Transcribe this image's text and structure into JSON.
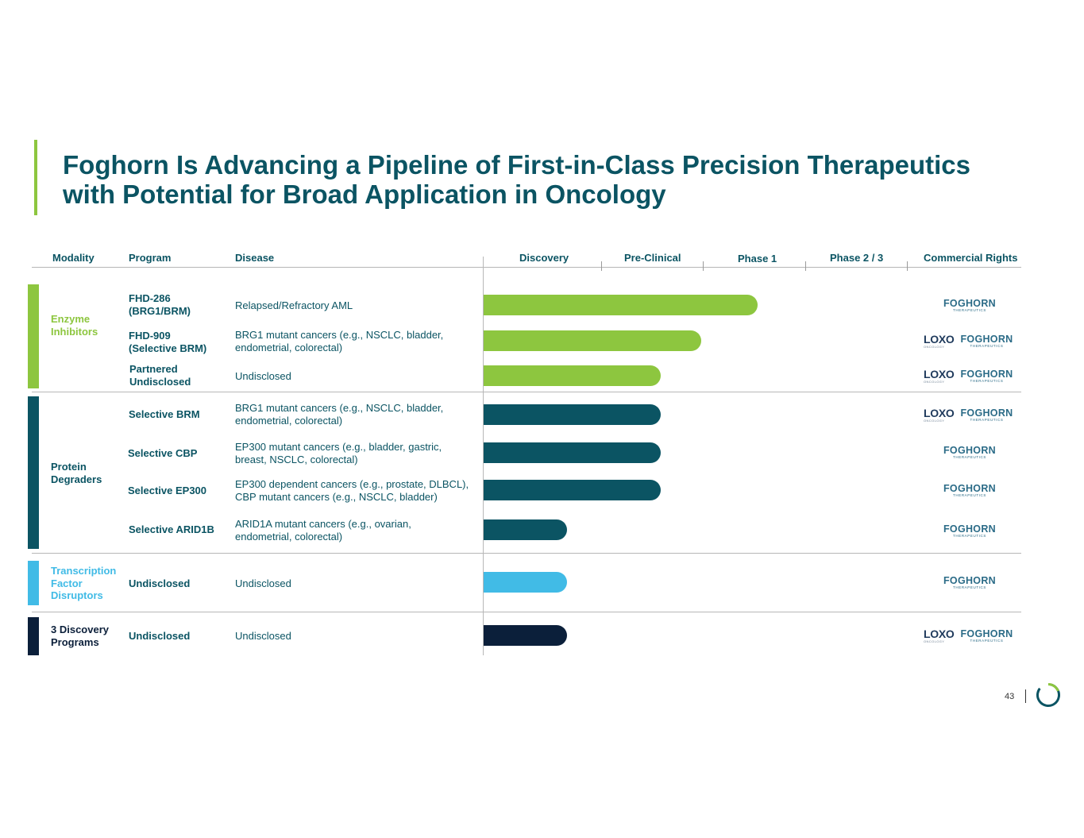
{
  "title": {
    "line1": "Foghorn Is Advancing a Pipeline of First-in-Class Precision Therapeutics",
    "line2": "with Potential for Broad Application in Oncology"
  },
  "headers": {
    "modality": "Modality",
    "program": "Program",
    "disease": "Disease",
    "discovery": "Discovery",
    "preclinical": "Pre-Clinical",
    "phase1": "Phase 1",
    "phase23": "Phase 2 / 3",
    "commercial": "Commercial Rights"
  },
  "colors": {
    "title": "#0b5463",
    "enzyme": "#8dc63f",
    "degrader": "#0b5463",
    "tf": "#41bbe6",
    "discovery": "#0b1f3a"
  },
  "modalities": {
    "enzyme": {
      "line1": "Enzyme",
      "line2": "Inhibitors"
    },
    "degraders": {
      "line1": "Protein",
      "line2": "Degraders"
    },
    "tf": {
      "line1": "Transcription",
      "line2": "Factor",
      "line3": "Disruptors"
    },
    "discovery": {
      "line1": "3 Discovery",
      "line2": "Programs"
    }
  },
  "programs": [
    {
      "program": [
        "FHD-286",
        "(BRG1/BRM)"
      ],
      "disease": [
        "Relapsed/Refractory AML"
      ],
      "stage_progress": 0.51,
      "rights": "foghorn"
    },
    {
      "program": [
        "FHD-909",
        "(Selective BRM)"
      ],
      "disease": [
        "BRG1 mutant cancers (e.g., NSCLC, bladder,",
        "endometrial, colorectal)"
      ],
      "stage_progress": 0.405,
      "rights": "loxo-foghorn"
    },
    {
      "program": [
        "Partnered",
        "Undisclosed"
      ],
      "disease": [
        "Undisclosed"
      ],
      "stage_progress": 0.33,
      "rights": "loxo-foghorn"
    },
    {
      "program": [
        "Selective BRM"
      ],
      "disease": [
        "BRG1 mutant cancers (e.g., NSCLC, bladder,",
        "endometrial, colorectal)"
      ],
      "stage_progress": 0.33,
      "rights": "loxo-foghorn"
    },
    {
      "program": [
        "Selective CBP"
      ],
      "disease": [
        "EP300 mutant cancers (e.g., bladder, gastric,",
        "breast, NSCLC, colorectal)"
      ],
      "stage_progress": 0.33,
      "rights": "foghorn"
    },
    {
      "program": [
        "Selective EP300"
      ],
      "disease": [
        "EP300 dependent cancers (e.g., prostate, DLBCL),",
        "CBP mutant cancers (e.g., NSCLC, bladder)"
      ],
      "stage_progress": 0.33,
      "rights": "foghorn"
    },
    {
      "program": [
        "Selective ARID1B"
      ],
      "disease": [
        "ARID1A mutant cancers (e.g., ovarian,",
        "endometrial, colorectal)"
      ],
      "stage_progress": 0.155,
      "rights": "foghorn"
    },
    {
      "program": [
        "Undisclosed"
      ],
      "disease": [
        "Undisclosed"
      ],
      "stage_progress": 0.155,
      "rights": "foghorn"
    },
    {
      "program": [
        "Undisclosed"
      ],
      "disease": [
        "Undisclosed"
      ],
      "stage_progress": 0.155,
      "rights": "loxo-foghorn"
    }
  ],
  "logos": {
    "foghorn": "FOGHORN",
    "foghorn_reg": "®",
    "foghorn_sub": "THERAPEUTICS",
    "loxo": "LOXO",
    "loxo_sub": "ONCOLOGY"
  },
  "page_number": "43"
}
